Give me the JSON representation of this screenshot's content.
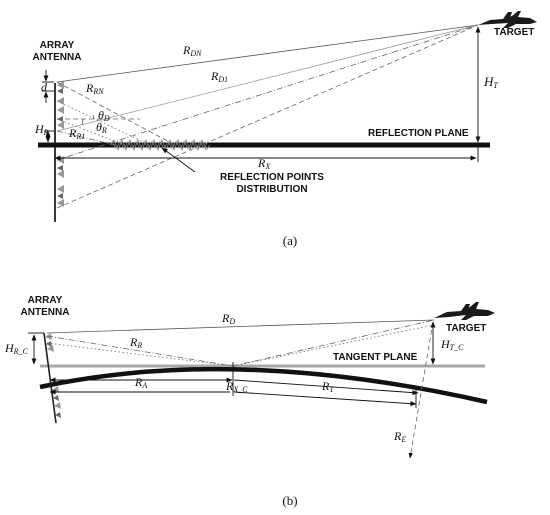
{
  "panel_a": {
    "caption": "(a)",
    "array_label": [
      "ARRAY",
      "ANTENNA"
    ],
    "target_label": "TARGET",
    "plane_label": "REFLECTION PLANE",
    "reflection_label": [
      "REFLECTION POINTS",
      "DISTRIBUTION"
    ],
    "symbols": {
      "rdn": {
        "base": "R",
        "sub": "DN"
      },
      "rd1": {
        "base": "R",
        "sub": "D1"
      },
      "rrn": {
        "base": "R",
        "sub": "RN"
      },
      "rr1": {
        "base": "R",
        "sub": "R1"
      },
      "d": {
        "base": "d",
        "sub": ""
      },
      "ht": {
        "base": "H",
        "sub": "T"
      },
      "hr": {
        "base": "H",
        "sub": "R"
      },
      "rx": {
        "base": "R",
        "sub": "X"
      },
      "theta_d": {
        "base": "θ",
        "sub": "D"
      },
      "theta_r": {
        "base": "θ",
        "sub": "R"
      }
    }
  },
  "panel_b": {
    "caption": "(b)",
    "array_label": [
      "ARRAY",
      "ANTENNA"
    ],
    "target_label": "TARGET",
    "plane_label": "TANGENT PLANE",
    "symbols": {
      "rd": {
        "base": "R",
        "sub": "D"
      },
      "rr": {
        "base": "R",
        "sub": "R"
      },
      "ra": {
        "base": "R",
        "sub": "A"
      },
      "rxc": {
        "base": "R",
        "sub": "X_C"
      },
      "rt": {
        "base": "R",
        "sub": "T"
      },
      "hrc": {
        "base": "H",
        "sub": "R_C"
      },
      "htc": {
        "base": "H",
        "sub": "T_C"
      },
      "re": {
        "base": "R",
        "sub": "E"
      }
    }
  }
}
